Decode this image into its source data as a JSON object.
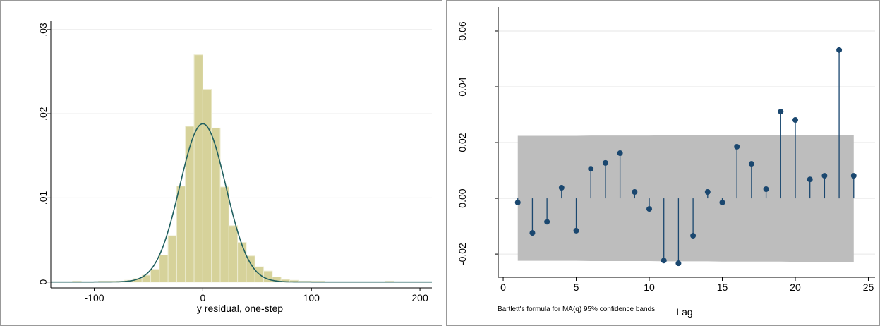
{
  "chart_data": [
    {
      "type": "histogram",
      "xlabel": "y residual, one-step",
      "bins": [
        -128,
        -120,
        -112,
        -104,
        -96,
        -88,
        -80,
        -72,
        -64,
        -56,
        -48,
        -40,
        -32,
        -24,
        -16,
        -8,
        0,
        8,
        16,
        24,
        32,
        40,
        48,
        56,
        64,
        72,
        80,
        88,
        96,
        104,
        112,
        120,
        128,
        136,
        144,
        152,
        160,
        168,
        176
      ],
      "values": [
        0,
        0.0001,
        0,
        0,
        0.0001,
        0.0001,
        0.0001,
        0.0002,
        0.0004,
        0.0008,
        0.0015,
        0.0032,
        0.0055,
        0.0114,
        0.0185,
        0.027,
        0.0229,
        0.0183,
        0.0113,
        0.0067,
        0.0047,
        0.0031,
        0.0018,
        0.0013,
        0.0006,
        0.0003,
        0.0002,
        0.0001,
        0.0001,
        0.0001,
        0,
        0,
        0,
        0,
        0,
        0,
        0,
        0.0001
      ],
      "color": "#d6d29a",
      "density_curve": {
        "mean": 0,
        "sd": 21.2,
        "color": "#1f5f5f"
      },
      "xlim": [
        -140,
        211
      ],
      "ylim": [
        -0.0007,
        0.031
      ],
      "xticks": [
        -100,
        0,
        100,
        200
      ],
      "yticks": [
        0,
        {
          "value": 0.01,
          "label": ".01"
        },
        {
          "value": 0.02,
          "label": ".02"
        },
        {
          "value": 0.03,
          "label": ".03"
        }
      ],
      "grid": true
    },
    {
      "type": "acf",
      "xlabel": "Lag",
      "note": "Bartlett's formula for MA(q) 95% confidence bands",
      "x": [
        1,
        2,
        3,
        4,
        5,
        6,
        7,
        8,
        9,
        10,
        11,
        12,
        13,
        14,
        15,
        16,
        17,
        18,
        19,
        20,
        21,
        22,
        23,
        24
      ],
      "values": [
        -0.0015,
        -0.0124,
        -0.0084,
        0.0038,
        -0.0116,
        0.0106,
        0.0127,
        0.0162,
        0.0023,
        -0.0038,
        -0.0223,
        -0.0233,
        -0.0134,
        0.0023,
        -0.0015,
        0.0185,
        0.0124,
        0.0033,
        0.0311,
        0.0281,
        0.0068,
        0.0081,
        0.0532,
        0.0081
      ],
      "band_upper": [
        0.0224,
        0.0224,
        0.0224,
        0.0224,
        0.0224,
        0.0225,
        0.0225,
        0.0225,
        0.0225,
        0.0225,
        0.0226,
        0.0226,
        0.0226,
        0.0226,
        0.0227,
        0.0227,
        0.0227,
        0.0227,
        0.0227,
        0.0228,
        0.0228,
        0.0228,
        0.0228,
        0.0228
      ],
      "band_lower": [
        -0.0224,
        -0.0224,
        -0.0224,
        -0.0224,
        -0.0224,
        -0.0225,
        -0.0225,
        -0.0225,
        -0.0225,
        -0.0225,
        -0.0226,
        -0.0226,
        -0.0226,
        -0.0226,
        -0.0227,
        -0.0227,
        -0.0227,
        -0.0227,
        -0.0227,
        -0.0228,
        -0.0228,
        -0.0228,
        -0.0228,
        -0.0228
      ],
      "color": "#1a476f",
      "band_color": "#bdbdbd",
      "xlim": [
        -0.34,
        25.46
      ],
      "ylim": [
        -0.0263,
        0.0686
      ],
      "xticks": [
        0,
        5,
        10,
        15,
        20,
        25
      ],
      "yticks": [
        -0.02,
        {
          "value": 0,
          "label": "0.00"
        },
        0.02,
        0.04,
        0.06
      ],
      "grid": true
    }
  ]
}
